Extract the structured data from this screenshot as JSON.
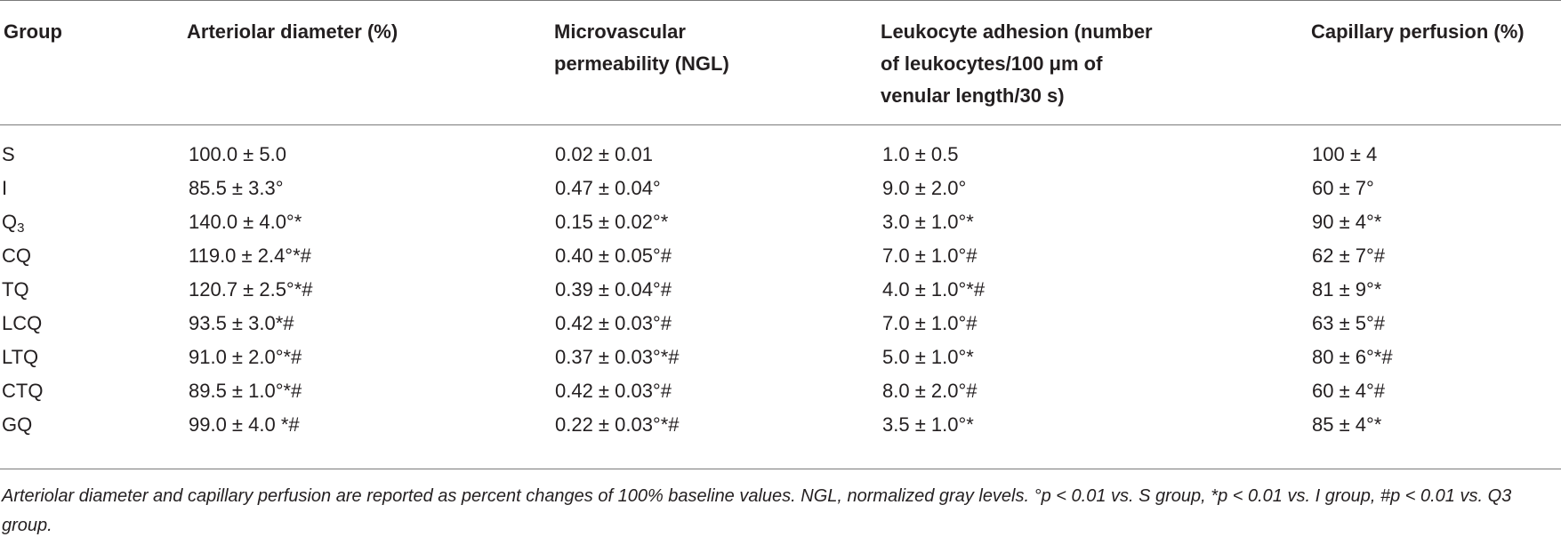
{
  "table": {
    "headers": [
      "Group",
      "Arteriolar diameter (%)",
      "Microvascular permeability (NGL)",
      "Leukocyte adhesion (number of leukocytes/100 μm of venular length/30 s)",
      "Capillary perfusion (%)"
    ],
    "header_lines": {
      "group": "Group",
      "arteriolar": "Arteriolar diameter (%)",
      "permeability_1": "Microvascular",
      "permeability_2": "permeability (NGL)",
      "leukocyte_1": "Leukocyte adhesion (number",
      "leukocyte_2": "of leukocytes/100 μm of",
      "leukocyte_3": "venular length/30 s)",
      "perfusion": "Capillary perfusion (%)"
    },
    "rows": [
      {
        "group": "S",
        "group_sub": "",
        "arteriolar": "100.0 ± 5.0",
        "permeability": "0.02 ± 0.01",
        "leukocyte": "1.0 ± 0.5",
        "perfusion": "100 ± 4"
      },
      {
        "group": "I",
        "group_sub": "",
        "arteriolar": "85.5 ± 3.3°",
        "permeability": "0.47 ± 0.04°",
        "leukocyte": "9.0 ± 2.0°",
        "perfusion": "60 ± 7°"
      },
      {
        "group": "Q",
        "group_sub": "3",
        "arteriolar": "140.0 ± 4.0°*",
        "permeability": "0.15 ± 0.02°*",
        "leukocyte": "3.0 ± 1.0°*",
        "perfusion": "90 ± 4°*"
      },
      {
        "group": "CQ",
        "group_sub": "",
        "arteriolar": "119.0 ± 2.4°*#",
        "permeability": "0.40 ± 0.05°#",
        "leukocyte": "7.0 ± 1.0°#",
        "perfusion": "62 ± 7°#"
      },
      {
        "group": "TQ",
        "group_sub": "",
        "arteriolar": "120.7 ± 2.5°*#",
        "permeability": "0.39 ± 0.04°#",
        "leukocyte": "4.0 ± 1.0°*#",
        "perfusion": "81 ± 9°*"
      },
      {
        "group": "LCQ",
        "group_sub": "",
        "arteriolar": "93.5 ± 3.0*#",
        "permeability": "0.42 ± 0.03°#",
        "leukocyte": "7.0 ± 1.0°#",
        "perfusion": "63 ± 5°#"
      },
      {
        "group": "LTQ",
        "group_sub": "",
        "arteriolar": "91.0 ± 2.0°*#",
        "permeability": "0.37 ± 0.03°*#",
        "leukocyte": "5.0 ± 1.0°*",
        "perfusion": "80 ± 6°*#"
      },
      {
        "group": "CTQ",
        "group_sub": "",
        "arteriolar": "89.5 ± 1.0°*#",
        "permeability": "0.42 ± 0.03°#",
        "leukocyte": "8.0 ± 2.0°#",
        "perfusion": "60 ± 4°#"
      },
      {
        "group": "GQ",
        "group_sub": "",
        "arteriolar": "99.0 ± 4.0 *#",
        "permeability": "0.22 ± 0.03°*#",
        "leukocyte": "3.5 ± 1.0°*",
        "perfusion": "85 ± 4°*"
      }
    ]
  },
  "footnote": "Arteriolar diameter and capillary perfusion are reported as percent changes of 100% baseline values. NGL, normalized gray levels. °p < 0.01 vs. S group, *p < 0.01 vs. I group, #p < 0.01 vs. Q3 group."
}
